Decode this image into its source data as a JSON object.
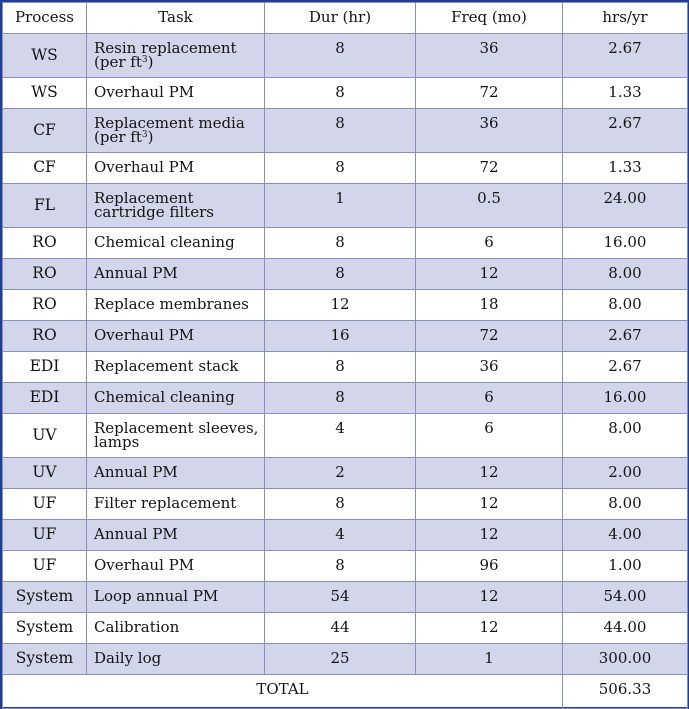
{
  "headers": [
    "Process",
    "Task",
    "Dur (hr)",
    "Freq (mo)",
    "hrs/yr"
  ],
  "rows": [
    {
      "process": "WS",
      "task": "Resin replacement (per ft",
      "task_sup": "3",
      "task_tail": ")",
      "dur": "8",
      "freq": "36",
      "hrs": "2.67"
    },
    {
      "process": "WS",
      "task": "Overhaul PM",
      "dur": "8",
      "freq": "72",
      "hrs": "1.33"
    },
    {
      "process": "CF",
      "task": "Replacement media (per ft",
      "task_sup": "3",
      "task_tail": ")",
      "dur": "8",
      "freq": "36",
      "hrs": "2.67"
    },
    {
      "process": "CF",
      "task": "Overhaul PM",
      "dur": "8",
      "freq": "72",
      "hrs": "1.33"
    },
    {
      "process": "FL",
      "task": "Replacement cartridge filters",
      "dur": "1",
      "freq": "0.5",
      "hrs": "24.00"
    },
    {
      "process": "RO",
      "task": "Chemical cleaning",
      "dur": "8",
      "freq": "6",
      "hrs": "16.00"
    },
    {
      "process": "RO",
      "task": "Annual PM",
      "dur": "8",
      "freq": "12",
      "hrs": "8.00"
    },
    {
      "process": "RO",
      "task": "Replace membranes",
      "dur": "12",
      "freq": "18",
      "hrs": "8.00"
    },
    {
      "process": "RO",
      "task": "Overhaul PM",
      "dur": "16",
      "freq": "72",
      "hrs": "2.67"
    },
    {
      "process": "EDI",
      "task": "Replacement stack",
      "dur": "8",
      "freq": "36",
      "hrs": "2.67"
    },
    {
      "process": "EDI",
      "task": "Chemical cleaning",
      "dur": "8",
      "freq": "6",
      "hrs": "16.00"
    },
    {
      "process": "UV",
      "task": "Replacement sleeves, lamps",
      "dur": "4",
      "freq": "6",
      "hrs": "8.00"
    },
    {
      "process": "UV",
      "task": "Annual PM",
      "dur": "2",
      "freq": "12",
      "hrs": "2.00"
    },
    {
      "process": "UF",
      "task": "Filter replacement",
      "dur": "8",
      "freq": "12",
      "hrs": "8.00"
    },
    {
      "process": "UF",
      "task": "Annual PM",
      "dur": "4",
      "freq": "12",
      "hrs": "4.00"
    },
    {
      "process": "UF",
      "task": "Overhaul PM",
      "dur": "8",
      "freq": "96",
      "hrs": "1.00"
    },
    {
      "process": "System",
      "task": "Loop annual PM",
      "dur": "54",
      "freq": "12",
      "hrs": "54.00"
    },
    {
      "process": "System",
      "task": "Calibration",
      "dur": "44",
      "freq": "12",
      "hrs": "44.00"
    },
    {
      "process": "System",
      "task": "Daily log",
      "dur": "25",
      "freq": "1",
      "hrs": "300.00"
    }
  ],
  "total": {
    "label": "TOTAL",
    "value": "506.33"
  },
  "colors": {
    "border": "#1f3f8f",
    "shade": "#d3d5ea",
    "grid": "#8a8fb8"
  }
}
